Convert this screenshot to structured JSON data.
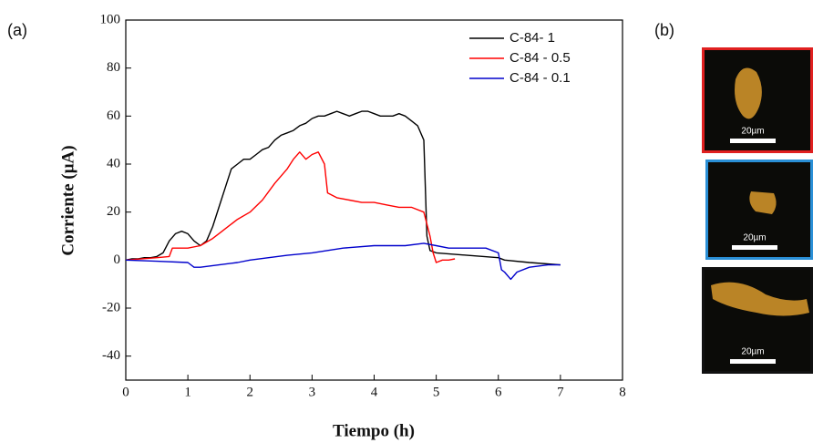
{
  "chart_data": {
    "type": "line",
    "panel_label": "(a)",
    "x_label": "Tiempo (h)",
    "y_label": "Corriente (µA)",
    "xlim": [
      0,
      8
    ],
    "xticks": [
      0,
      1,
      2,
      3,
      4,
      5,
      6,
      7,
      8
    ],
    "ylim": [
      -50,
      100
    ],
    "yticks": [
      -40,
      -20,
      0,
      20,
      40,
      60,
      80,
      100
    ],
    "legend": "upper right",
    "series": [
      {
        "name": "C-84- 1",
        "color": "#000000",
        "x": [
          0,
          0.1,
          0.2,
          0.3,
          0.4,
          0.5,
          0.6,
          0.7,
          0.8,
          0.9,
          1.0,
          1.1,
          1.2,
          1.3,
          1.4,
          1.5,
          1.6,
          1.7,
          1.8,
          1.9,
          2.0,
          2.1,
          2.2,
          2.3,
          2.4,
          2.5,
          2.6,
          2.7,
          2.8,
          2.9,
          3.0,
          3.1,
          3.2,
          3.3,
          3.4,
          3.5,
          3.6,
          3.7,
          3.8,
          3.9,
          4.0,
          4.1,
          4.2,
          4.3,
          4.4,
          4.5,
          4.6,
          4.7,
          4.8,
          4.85,
          4.9,
          5.0,
          5.5,
          6.0,
          6.1,
          6.5,
          7.0
        ],
        "values": [
          0,
          0.5,
          0.5,
          1,
          1,
          1.5,
          3,
          8,
          11,
          12,
          11,
          8,
          6,
          8,
          14,
          22,
          30,
          38,
          40,
          42,
          42,
          44,
          46,
          47,
          50,
          52,
          53,
          54,
          56,
          57,
          59,
          60,
          60,
          61,
          62,
          61,
          60,
          61,
          62,
          62,
          61,
          60,
          60,
          60,
          61,
          60,
          58,
          56,
          50,
          10,
          4,
          3,
          2,
          1,
          0,
          -1,
          -2
        ]
      },
      {
        "name": "C-84 - 0.5",
        "color": "#ff0000",
        "x": [
          0,
          0.5,
          0.7,
          0.75,
          0.8,
          1.0,
          1.2,
          1.4,
          1.6,
          1.8,
          2.0,
          2.2,
          2.4,
          2.6,
          2.7,
          2.8,
          2.9,
          3.0,
          3.1,
          3.2,
          3.25,
          3.4,
          3.6,
          3.8,
          4.0,
          4.2,
          4.4,
          4.6,
          4.8,
          4.9,
          4.95,
          5.0,
          5.1,
          5.2,
          5.3
        ],
        "values": [
          0,
          1,
          1.5,
          5,
          5,
          5,
          6,
          9,
          13,
          17,
          20,
          25,
          32,
          38,
          42,
          45,
          42,
          44,
          45,
          40,
          28,
          26,
          25,
          24,
          24,
          23,
          22,
          22,
          20,
          10,
          3,
          -1,
          0,
          0,
          0.5
        ]
      },
      {
        "name": "C-84 - 0.1",
        "color": "#0000cc",
        "x": [
          0,
          0.5,
          1.0,
          1.1,
          1.2,
          1.5,
          1.8,
          2.0,
          2.3,
          2.6,
          3.0,
          3.5,
          4.0,
          4.5,
          4.8,
          5.0,
          5.2,
          5.5,
          5.8,
          6.0,
          6.05,
          6.1,
          6.2,
          6.3,
          6.5,
          6.8,
          7.0
        ],
        "values": [
          0,
          -0.5,
          -1,
          -3,
          -3,
          -2,
          -1,
          0,
          1,
          2,
          3,
          5,
          6,
          6,
          7,
          6,
          5,
          5,
          5,
          3,
          -4,
          -5,
          -8,
          -5,
          -3,
          -2,
          -2
        ]
      }
    ]
  },
  "panel_b": {
    "label": "(b)",
    "images": [
      {
        "scale_label": "20µm",
        "border": "#e02020"
      },
      {
        "scale_label": "20µm",
        "border": "#2a8fd6"
      },
      {
        "scale_label": "20µm",
        "border": "#111111"
      }
    ]
  }
}
